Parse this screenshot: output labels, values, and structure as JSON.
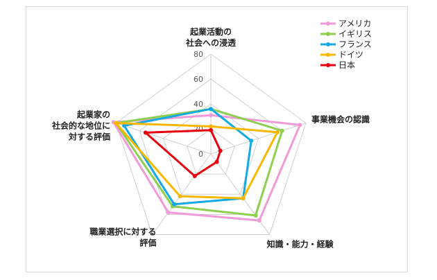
{
  "chart_data": {
    "type": "radar",
    "title": "",
    "axes": [
      {
        "lines": [
          "起業活動の",
          "社会への浸透"
        ]
      },
      {
        "lines": [
          "事業機会の認識"
        ]
      },
      {
        "lines": [
          "知識・能力・経験"
        ]
      },
      {
        "lines": [
          "職業選択に対する",
          "評価"
        ]
      },
      {
        "lines": [
          "起業家の",
          "社会的な地位に",
          "対する評価"
        ]
      }
    ],
    "rlim": [
      0,
      80
    ],
    "ticks": [
      0,
      20,
      40,
      60,
      80
    ],
    "tick_labels": [
      "0",
      "20",
      "40",
      "60",
      "80"
    ],
    "grid": true,
    "legend_position": "top-right",
    "series": [
      {
        "name": "アメリカ",
        "color": "#f09ad8",
        "values": [
          31,
          75,
          66,
          58,
          82
        ]
      },
      {
        "name": "イギリス",
        "color": "#8dcf4f",
        "values": [
          36,
          60,
          61,
          52,
          80
        ]
      },
      {
        "name": "フランス",
        "color": "#13a9e3",
        "values": [
          36,
          34,
          44,
          50,
          73
        ]
      },
      {
        "name": "ドイツ",
        "color": "#f9b800",
        "values": [
          22,
          56,
          44,
          42,
          80
        ]
      },
      {
        "name": "日本",
        "color": "#e8000e",
        "values": [
          19,
          8,
          8,
          22,
          55
        ]
      }
    ]
  }
}
